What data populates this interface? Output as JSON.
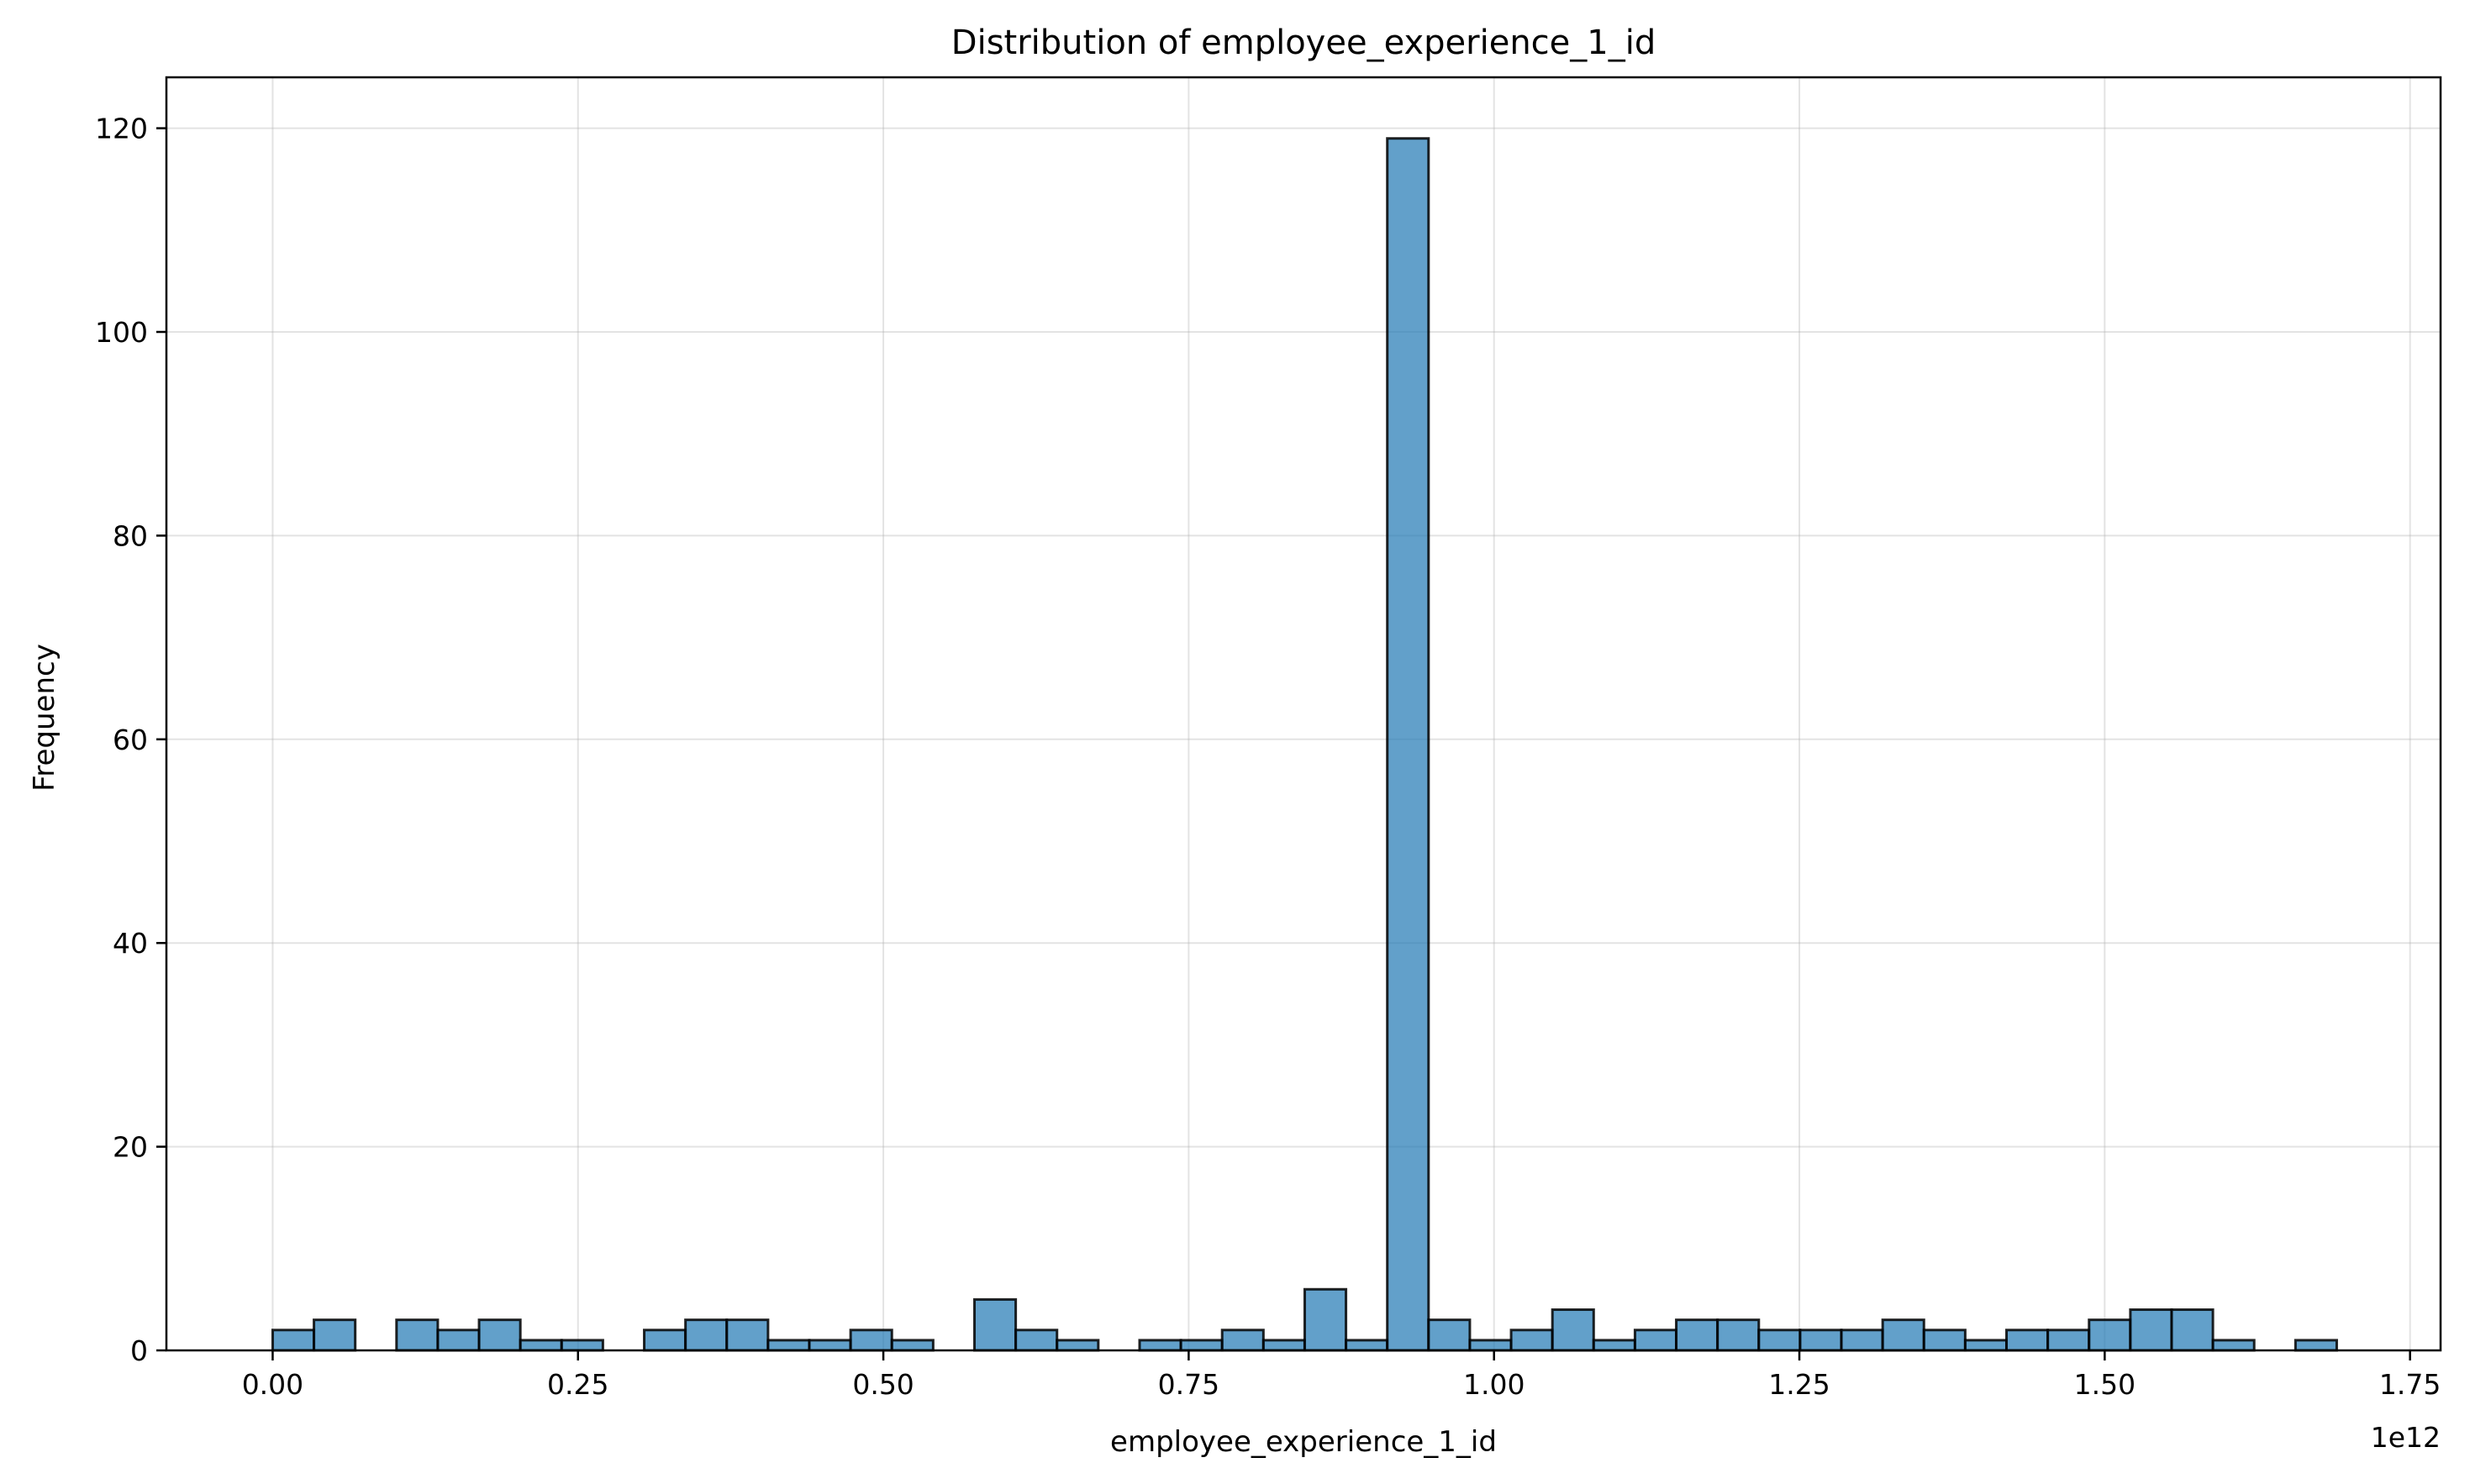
{
  "chart_data": {
    "type": "bar",
    "title": "Distribution of employee_experience_1_id",
    "xlabel": "employee_experience_1_id",
    "ylabel": "Frequency",
    "x_offset_label": "1e12",
    "xlim": [
      -0.087,
      1.775
    ],
    "ylim": [
      0,
      125
    ],
    "x_ticks": [
      0.0,
      0.25,
      0.5,
      0.75,
      1.0,
      1.25,
      1.5,
      1.75
    ],
    "x_tick_labels": [
      "0.00",
      "0.25",
      "0.50",
      "0.75",
      "1.00",
      "1.25",
      "1.50",
      "1.75"
    ],
    "y_ticks": [
      0,
      20,
      40,
      60,
      80,
      100,
      120
    ],
    "y_tick_labels": [
      "0",
      "20",
      "40",
      "60",
      "80",
      "100",
      "120"
    ],
    "grid": true,
    "bins": {
      "start": 0.0,
      "width": 0.0338,
      "counts": [
        2,
        3,
        0,
        3,
        2,
        3,
        1,
        1,
        0,
        2,
        3,
        3,
        1,
        1,
        2,
        1,
        0,
        5,
        2,
        1,
        0,
        1,
        1,
        2,
        1,
        6,
        1,
        119,
        3,
        1,
        2,
        4,
        1,
        2,
        3,
        3,
        2,
        2,
        2,
        3,
        2,
        1,
        2,
        2,
        3,
        4,
        4,
        1,
        0,
        1
      ]
    }
  }
}
